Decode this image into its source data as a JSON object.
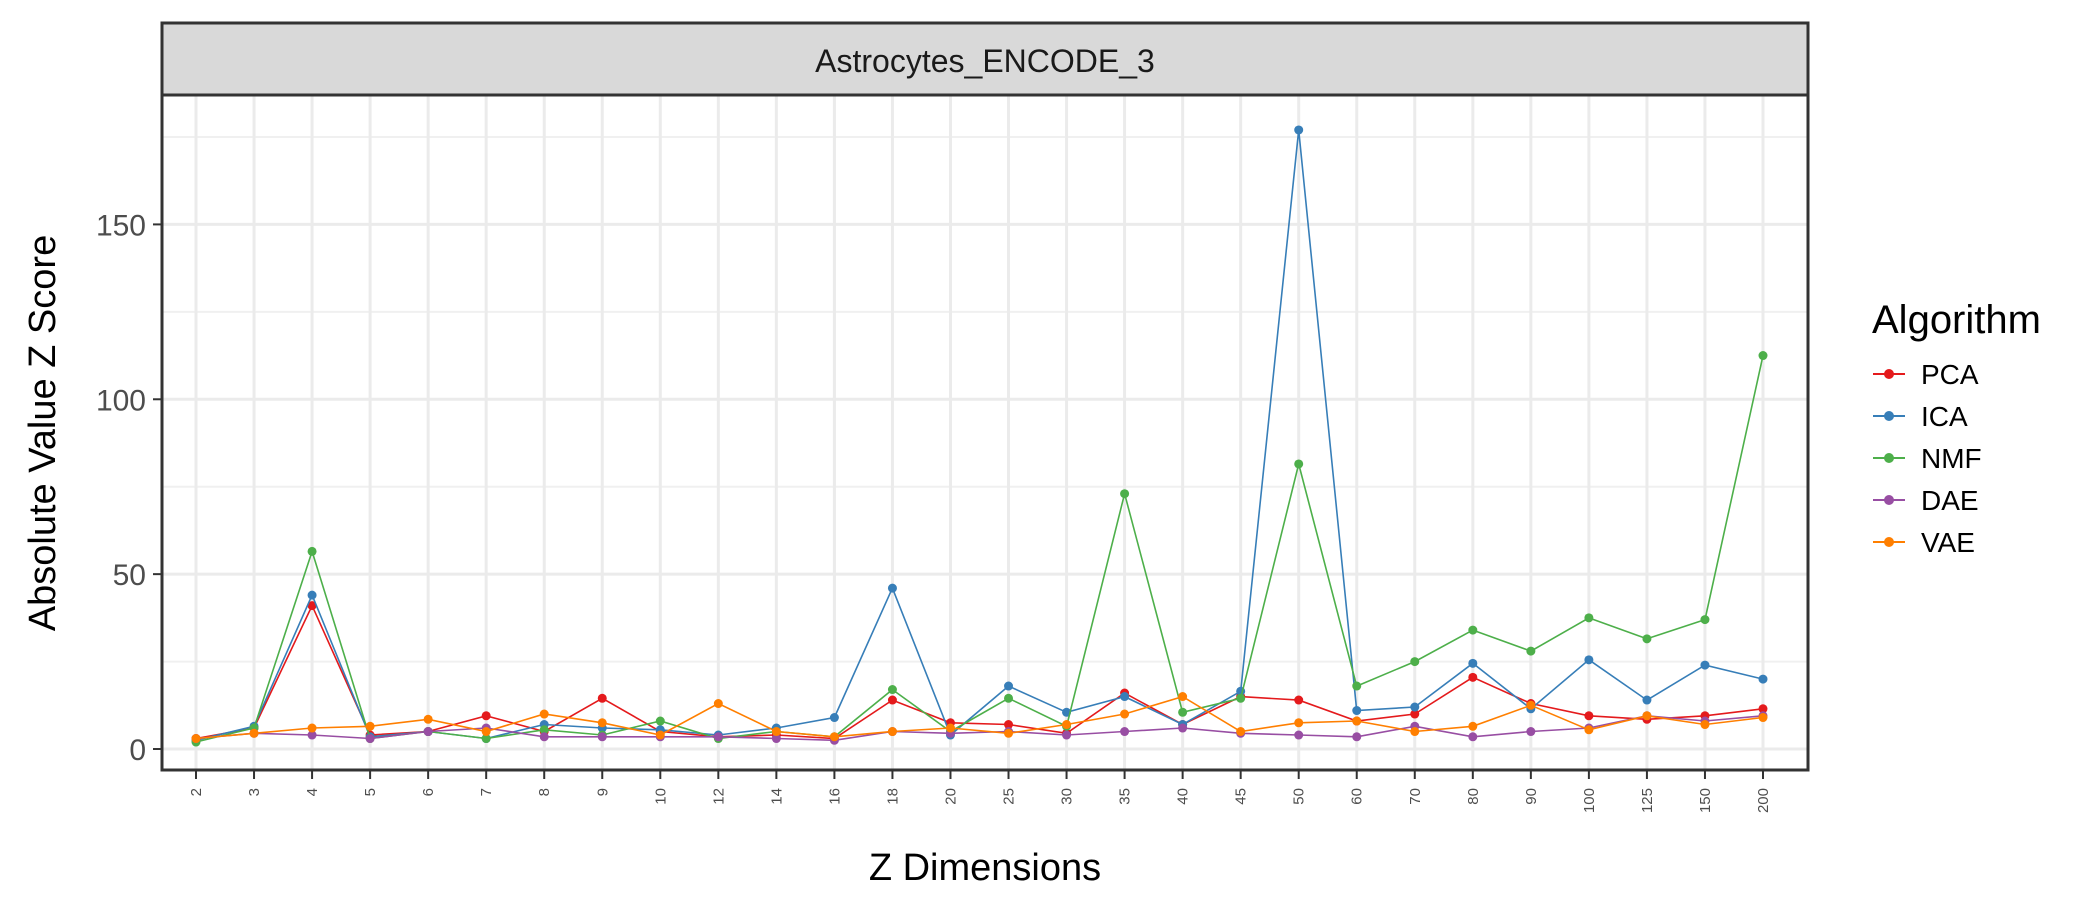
{
  "chart_data": {
    "type": "line",
    "panel_title": "Astrocytes_ENCODE_3",
    "xlabel": "Z Dimensions",
    "ylabel": "Absolute Value Z Score",
    "categories": [
      "2",
      "3",
      "4",
      "5",
      "6",
      "7",
      "8",
      "9",
      "10",
      "12",
      "14",
      "16",
      "18",
      "20",
      "25",
      "30",
      "35",
      "40",
      "45",
      "50",
      "60",
      "70",
      "80",
      "90",
      "100",
      "125",
      "150",
      "200"
    ],
    "ylim": [
      -6,
      187
    ],
    "yticks": [
      0,
      50,
      100,
      150
    ],
    "grid": true,
    "legend": {
      "title": "Algorithm",
      "placement": "right"
    },
    "series": [
      {
        "name": "PCA",
        "color": "#E41A1C",
        "values": [
          3,
          6,
          41,
          4,
          5,
          9.5,
          5,
          14.5,
          5,
          3.5,
          4,
          3,
          14,
          7.5,
          7,
          4.5,
          16,
          7,
          15,
          14,
          8,
          10,
          20.5,
          13,
          9.5,
          8.5,
          9.5,
          11.5
        ]
      },
      {
        "name": "ICA",
        "color": "#377EB8",
        "values": [
          2.5,
          6.5,
          44,
          3.5,
          5,
          3,
          7,
          6,
          5.5,
          4,
          6,
          9,
          46,
          4,
          18,
          10.5,
          15,
          7,
          16.5,
          177,
          11,
          12,
          24.5,
          11.5,
          25.5,
          14,
          24,
          20
        ]
      },
      {
        "name": "NMF",
        "color": "#4DAF4A",
        "values": [
          2,
          6,
          56.5,
          3,
          5,
          3,
          5.5,
          4,
          8,
          3,
          5,
          3.5,
          17,
          5,
          14.5,
          6.5,
          73,
          10.5,
          14.5,
          81.5,
          18,
          25,
          34,
          28,
          37.5,
          31.5,
          37,
          112.5
        ]
      },
      {
        "name": "DAE",
        "color": "#984EA3",
        "values": [
          3,
          4.5,
          4,
          3,
          5,
          6,
          3.5,
          3.5,
          3.5,
          3.5,
          3,
          2.5,
          5,
          4.5,
          5,
          4,
          5,
          6,
          4.5,
          4,
          3.5,
          6.5,
          3.5,
          5,
          6,
          9.5,
          8,
          9.5
        ]
      },
      {
        "name": "VAE",
        "color": "#FF7F00",
        "values": [
          3,
          4.5,
          6,
          6.5,
          8.5,
          5,
          10,
          7.5,
          4,
          13,
          5,
          3.5,
          5,
          6,
          4.5,
          7,
          10,
          15,
          5,
          7.5,
          8,
          5,
          6.5,
          12.5,
          5.5,
          9.5,
          7,
          9
        ]
      }
    ]
  }
}
